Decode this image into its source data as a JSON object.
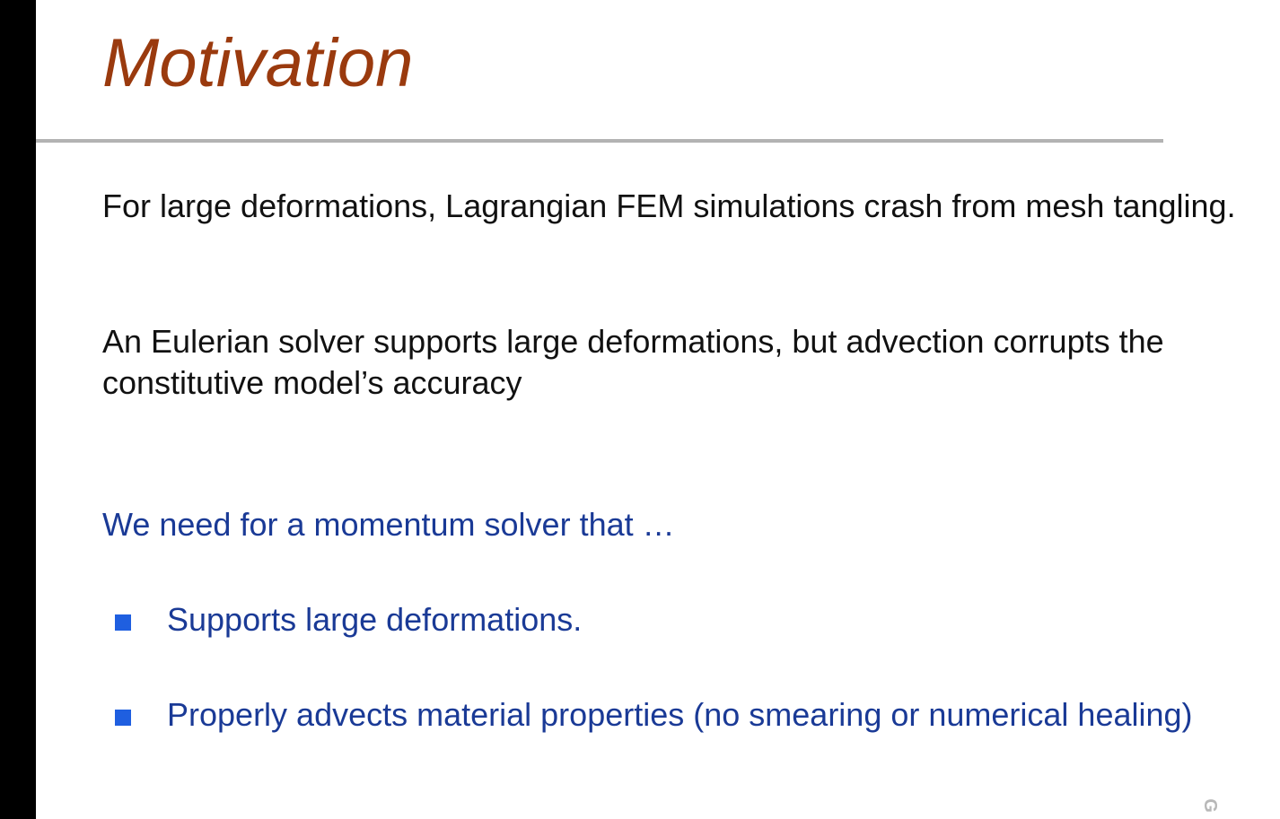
{
  "slide": {
    "title": "Motivation",
    "paragraphs": [
      "For large deformations, Lagrangian FEM simulations crash from mesh tangling.",
      "An Eulerian solver supports large deformations, but advection corrupts the constitutive model’s accuracy"
    ],
    "lead": "We need for a momentum solver that …",
    "bullets": [
      "Supports large deformations.",
      "Properly advects material properties (no smearing or numerical healing)"
    ],
    "corner_mark": "G"
  },
  "colors": {
    "title": "#9a3a0e",
    "body_text": "#111111",
    "accent_text": "#1a3a96",
    "bullet_marker": "#1f5fe0",
    "rule": "#b3b3b3",
    "left_bar": "#000000"
  },
  "icons": {
    "bullet": "square-bullet-icon"
  }
}
